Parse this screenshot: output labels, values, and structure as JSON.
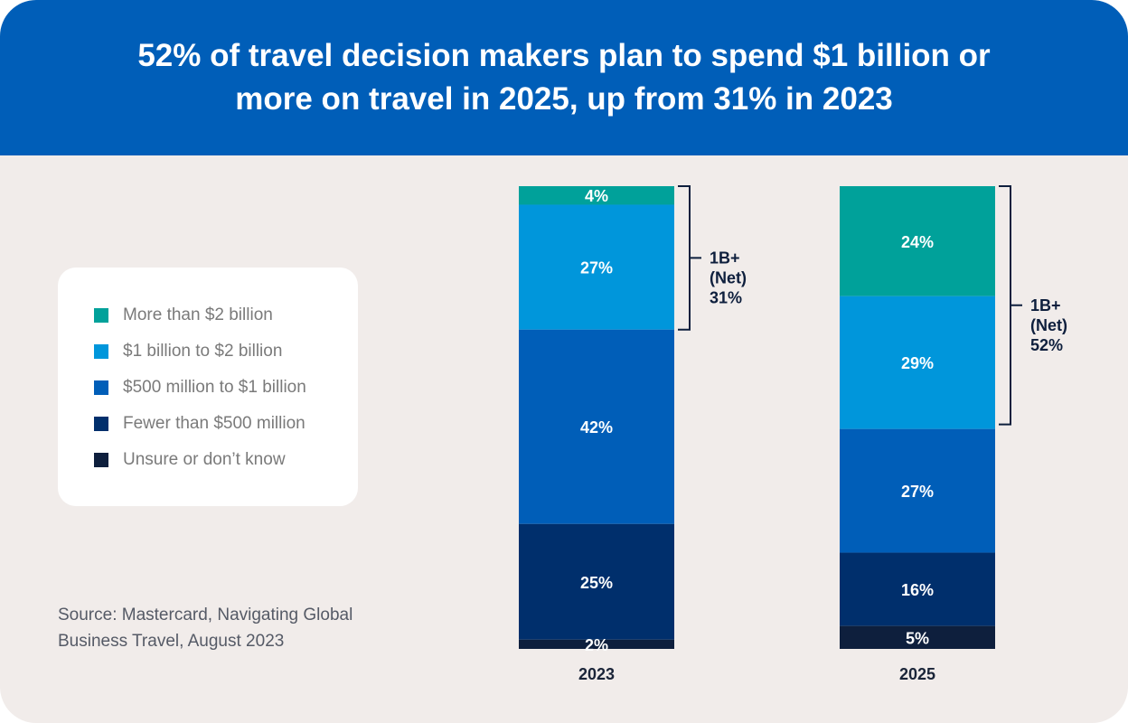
{
  "title": "52% of travel decision makers plan to spend $1 billion or more on travel in 2025, up from 31% in 2023",
  "source": "Source: Mastercard, Navigating Global Business Travel, August 2023",
  "chart_data": {
    "type": "bar",
    "stacked": true,
    "title": "52% of travel decision makers plan to spend $1 billion or more on travel in 2025, up from 31% in 2023",
    "categories": [
      "2023",
      "2025"
    ],
    "series": [
      {
        "name": "More than $2 billion",
        "color": "#00A19A",
        "values": [
          4,
          24
        ],
        "labels": [
          "4%",
          "24%"
        ]
      },
      {
        "name": "$1 billion to $2 billion",
        "color": "#0096DB",
        "values": [
          27,
          29
        ],
        "labels": [
          "27%",
          "29%"
        ]
      },
      {
        "name": "$500 million to $1 billion",
        "color": "#005EB8",
        "values": [
          42,
          27
        ],
        "labels": [
          "42%",
          "27%"
        ]
      },
      {
        "name": "Fewer than $500 million",
        "color": "#002F6C",
        "values": [
          25,
          16
        ],
        "labels": [
          "25%",
          "16%"
        ]
      },
      {
        "name": "Unsure or don’t know",
        "color": "#0E1F3D",
        "values": [
          2,
          5
        ],
        "labels": [
          "2%",
          "5%"
        ]
      }
    ],
    "annotations": [
      {
        "category": "2023",
        "lines": [
          "1B+",
          "(Net)",
          "31%"
        ],
        "value": 31
      },
      {
        "category": "2025",
        "lines": [
          "1B+",
          "(Net)",
          "52%"
        ],
        "value": 52
      }
    ],
    "legend": "left",
    "xlabel": "",
    "ylabel": ""
  }
}
